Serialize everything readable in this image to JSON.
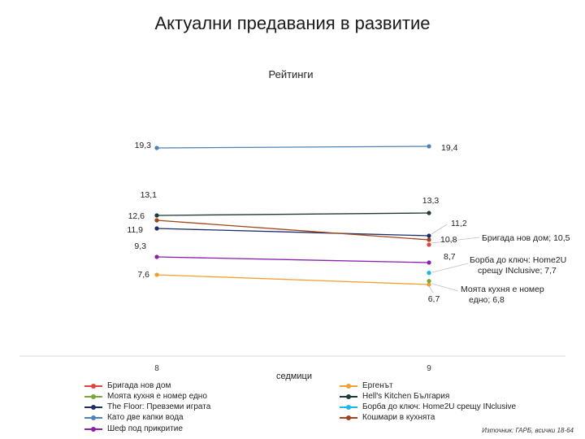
{
  "title": "Актуални предавания в развитие",
  "source": "Източник: ГАРБ, всички 18-64",
  "chart_data": {
    "type": "line",
    "title": "Рейтинги",
    "xlabel": "седмици",
    "ylabel": "",
    "categories": [
      "8",
      "9"
    ],
    "ylim": [
      0,
      24
    ],
    "grid": false,
    "legend_position": "bottom",
    "series": [
      {
        "name": "Бригада нов дом",
        "values": [
          null,
          10.5
        ],
        "color": "#e0443a",
        "labels": [
          "",
          "Бригада нов дом; 10,5"
        ]
      },
      {
        "name": "Ергенът",
        "values": [
          7.6,
          6.7
        ],
        "color": "#f0a030",
        "labels": [
          "7,6",
          "6,7"
        ]
      },
      {
        "name": "Моята кухня е номер едно",
        "values": [
          null,
          6.8
        ],
        "color": "#78a838",
        "labels": [
          "",
          "Моята кухня е номер едно; 6,8"
        ]
      },
      {
        "name": "Hell's Kitchen България",
        "values": [
          13.1,
          13.3
        ],
        "color": "#1f3a38",
        "labels": [
          "13,1",
          "13,3"
        ]
      },
      {
        "name": "The Floor: Превземи играта",
        "values": [
          11.9,
          11.2
        ],
        "color": "#1c2d6a",
        "labels": [
          "11,9",
          "11,2"
        ]
      },
      {
        "name": "Борба до ключ: Home2U срещу INclusive",
        "values": [
          null,
          7.7
        ],
        "color": "#1ab8e6",
        "labels": [
          "",
          "Борба до ключ: Home2U срещу INclusive; 7,7"
        ]
      },
      {
        "name": "Като две капки вода",
        "values": [
          19.3,
          19.4
        ],
        "color": "#4d82b8",
        "labels": [
          "19,3",
          "19,4"
        ]
      },
      {
        "name": "Кошмари в кухнята",
        "values": [
          12.6,
          10.8
        ],
        "color": "#a0461a",
        "labels": [
          "12,6",
          "10,8"
        ]
      },
      {
        "name": "Шеф под прикритие",
        "values": [
          9.3,
          8.7
        ],
        "color": "#8c1fb0",
        "labels": [
          "9,3",
          "8,7"
        ]
      }
    ]
  }
}
